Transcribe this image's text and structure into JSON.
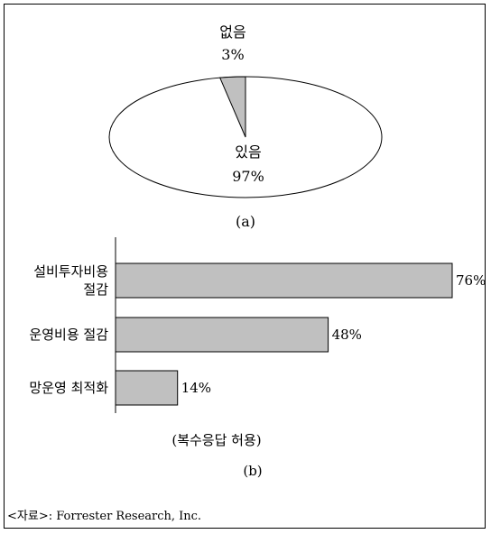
{
  "chart_data": [
    {
      "type": "pie",
      "caption": "(a)",
      "slices": [
        {
          "label": "없음",
          "value": 3,
          "display": "3%",
          "color": "#c0c0c0"
        },
        {
          "label": "있음",
          "value": 97,
          "display": "97%",
          "color": "#ffffff"
        }
      ]
    },
    {
      "type": "bar",
      "orientation": "horizontal",
      "caption": "(b)",
      "note": "(복수응답 허용)",
      "categories": [
        [
          "설비투자비용",
          "절감"
        ],
        [
          "운영비용 절감"
        ],
        [
          "망운영 최적화"
        ]
      ],
      "values": [
        76,
        48,
        14
      ],
      "value_labels": [
        "76%",
        "48%",
        "14%"
      ],
      "xlim": [
        0,
        76
      ],
      "bar_color": "#c0c0c0"
    }
  ],
  "source": "<자료>: Forrester Research, Inc."
}
